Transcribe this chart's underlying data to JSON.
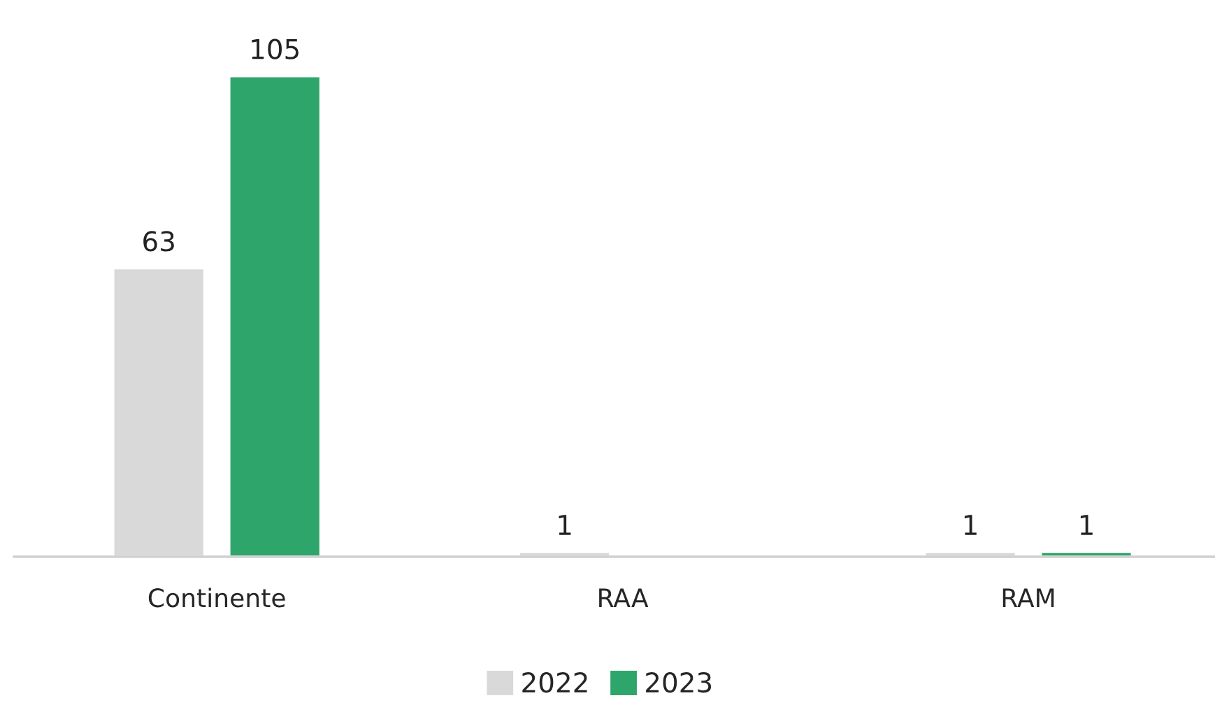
{
  "chart_data": {
    "type": "bar",
    "categories": [
      "Continente",
      "RAA",
      "RAM"
    ],
    "series": [
      {
        "name": "2022",
        "color": "#d9d9d9",
        "values": [
          63,
          1,
          1
        ]
      },
      {
        "name": "2023",
        "color": "#2ea56b",
        "values": [
          105,
          null,
          1
        ]
      }
    ],
    "data_labels": true,
    "legend": "bottom",
    "grid": false
  }
}
